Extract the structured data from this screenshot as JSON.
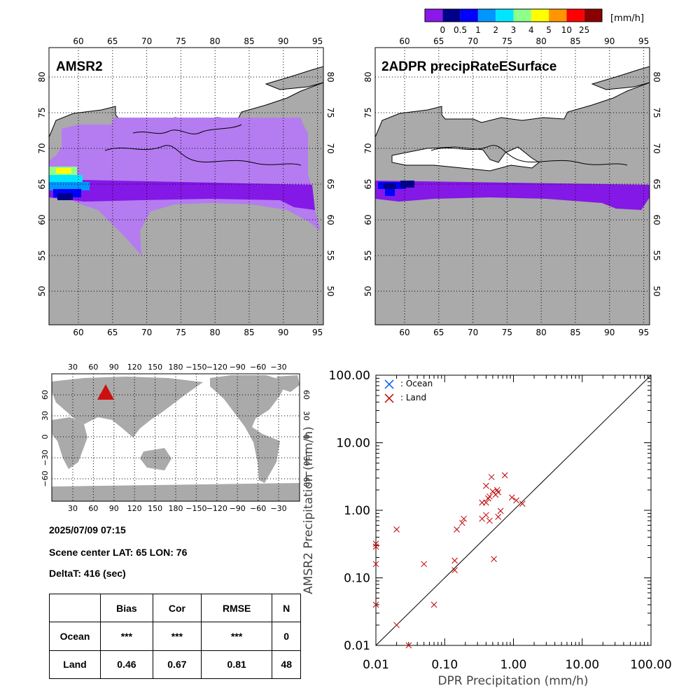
{
  "colorbar": {
    "unit": "[mm/h]",
    "labels": [
      "0",
      "0.5",
      "1",
      "2",
      "3",
      "4",
      "5",
      "10",
      "25"
    ],
    "colors": [
      "#8a18e8",
      "#00008b",
      "#0000ff",
      "#0096ff",
      "#00e6ff",
      "#8cff8c",
      "#ffff00",
      "#ff9600",
      "#ff0000",
      "#8b0000"
    ]
  },
  "colors": {
    "land": "#aaaaaa",
    "ocean": "#ffffff",
    "light_rain": "#b47cf0",
    "mid_rain": "#8418e6",
    "land_marker": "#c00000",
    "ocean_marker": "#0050ff",
    "scene_marker": "#cc1010"
  },
  "maps": [
    {
      "title": "AMSR2",
      "lon_ticks": [
        "60",
        "65",
        "70",
        "75",
        "80",
        "85",
        "90",
        "95"
      ],
      "lat_ticks": [
        "50",
        "55",
        "60",
        "65",
        "70",
        "75",
        "80"
      ]
    },
    {
      "title": "2ADPR precipRateESurface",
      "lon_ticks": [
        "60",
        "65",
        "70",
        "75",
        "80",
        "85",
        "90",
        "95"
      ],
      "lat_ticks": [
        "50",
        "55",
        "60",
        "65",
        "70",
        "75",
        "80"
      ]
    }
  ],
  "world_map": {
    "lon_ticks": [
      "30",
      "60",
      "90",
      "120",
      "150",
      "180",
      "−150",
      "−120",
      "−90",
      "−60",
      "−30"
    ],
    "lat_ticks": [
      "60",
      "30",
      "0",
      "−30",
      "−60"
    ]
  },
  "info": {
    "datetime": "2025/07/09 07:15",
    "scene_center": "Scene center LAT: 65   LON:  76",
    "delta_t": "DeltaT:  416 (sec)"
  },
  "stats_table": {
    "headers": [
      "",
      "Bias",
      "Cor",
      "RMSE",
      "N"
    ],
    "rows": [
      [
        "Ocean",
        "***",
        "***",
        "***",
        "0"
      ],
      [
        "Land",
        "0.46",
        "0.67",
        "0.81",
        "48"
      ]
    ]
  },
  "chart_data": {
    "type": "scatter",
    "xlabel": "DPR Precipitation (mm/h)",
    "ylabel": "AMSR2 Precipitation (mm/h)",
    "xscale": "log",
    "yscale": "log",
    "xlim": [
      0.01,
      100
    ],
    "ylim": [
      0.01,
      100
    ],
    "tick_labels": [
      "0.01",
      "0.10",
      "1.00",
      "10.00",
      "100.00"
    ],
    "legend": {
      "placement": "top-left",
      "entries": [
        ": Ocean",
        ": Land"
      ]
    },
    "series": [
      {
        "name": ": Ocean",
        "color": "#0050ff",
        "points": []
      },
      {
        "name": ": Land",
        "color": "#c00000",
        "points": [
          [
            0.01,
            0.04
          ],
          [
            0.01,
            0.16
          ],
          [
            0.01,
            0.29
          ],
          [
            0.01,
            0.32
          ],
          [
            0.02,
            0.02
          ],
          [
            0.02,
            0.52
          ],
          [
            0.03,
            0.01
          ],
          [
            0.05,
            0.16
          ],
          [
            0.07,
            0.04
          ],
          [
            0.14,
            0.13
          ],
          [
            0.14,
            0.18
          ],
          [
            0.15,
            0.52
          ],
          [
            0.18,
            0.65
          ],
          [
            0.19,
            0.75
          ],
          [
            0.35,
            0.75
          ],
          [
            0.35,
            1.3
          ],
          [
            0.4,
            0.85
          ],
          [
            0.4,
            1.3
          ],
          [
            0.4,
            2.3
          ],
          [
            0.43,
            1.5
          ],
          [
            0.45,
            0.7
          ],
          [
            0.45,
            1.6
          ],
          [
            0.48,
            3.1
          ],
          [
            0.5,
            1.9
          ],
          [
            0.52,
            0.19
          ],
          [
            0.55,
            1.7
          ],
          [
            0.58,
            2.0
          ],
          [
            0.6,
            1.85
          ],
          [
            0.6,
            0.8
          ],
          [
            0.65,
            0.98
          ],
          [
            0.75,
            3.3
          ],
          [
            0.95,
            1.55
          ],
          [
            1.1,
            1.4
          ],
          [
            1.35,
            1.25
          ]
        ]
      }
    ],
    "diagonal_reference": true
  }
}
